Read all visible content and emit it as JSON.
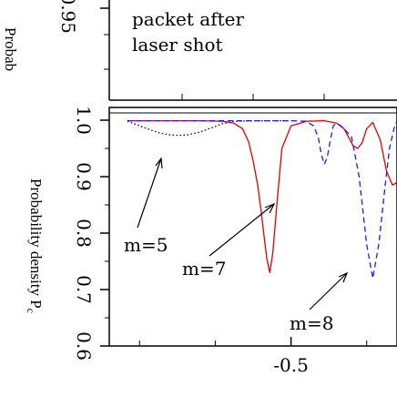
{
  "chart_data": [
    {
      "type": "line",
      "panel": "upper",
      "ylabel": "Probab",
      "y_ticks": [
        "0.95"
      ],
      "annotation_lines": [
        "packet after",
        "laser shot"
      ]
    },
    {
      "type": "line",
      "panel": "lower",
      "ylabel": "Probability density P",
      "ylabel_sub": "c",
      "ylim": [
        0.6,
        1.0
      ],
      "xlim": [
        -0.62,
        -0.43
      ],
      "y_ticks": [
        "1.0",
        "0.9",
        "0.8",
        "0.7",
        "0.6"
      ],
      "x_ticks": [
        "-0.5"
      ],
      "grid": false,
      "annotations": [
        "m=5",
        "m=7",
        "m=8"
      ],
      "series": [
        {
          "label": "m=5",
          "color": "#000000",
          "dash": "dotted",
          "x": [
            -0.608,
            -0.6,
            -0.592,
            -0.586,
            -0.58,
            -0.574,
            -0.568,
            -0.56,
            -0.552,
            -0.545,
            -0.538,
            -0.52,
            -0.5
          ],
          "y": [
            0.998,
            0.99,
            0.982,
            0.977,
            0.974,
            0.973,
            0.974,
            0.979,
            0.987,
            0.994,
            0.998,
            0.999,
            0.999
          ]
        },
        {
          "label": "m=7",
          "color": "#e00000",
          "dash": "solid",
          "x": [
            -0.608,
            -0.56,
            -0.545,
            -0.538,
            -0.532,
            -0.528,
            -0.525,
            -0.522,
            -0.52,
            -0.518,
            -0.516,
            -0.514,
            -0.512,
            -0.509,
            -0.506,
            -0.5,
            -0.49,
            -0.478,
            -0.47,
            -0.465,
            -0.462,
            -0.459,
            -0.456,
            -0.453,
            -0.45,
            -0.446,
            -0.441,
            -0.437,
            -0.433,
            -0.43
          ],
          "y": [
            0.999,
            0.999,
            0.998,
            0.995,
            0.985,
            0.962,
            0.928,
            0.885,
            0.845,
            0.8,
            0.755,
            0.73,
            0.765,
            0.86,
            0.95,
            0.99,
            0.998,
            0.999,
            0.995,
            0.985,
            0.97,
            0.955,
            0.95,
            0.96,
            0.985,
            0.996,
            0.965,
            0.91,
            0.885,
            0.89
          ]
        },
        {
          "label": "m=8",
          "color": "#1a1aff",
          "dash": "dashed",
          "x": [
            -0.608,
            -0.5,
            -0.49,
            -0.485,
            -0.482,
            -0.48,
            -0.478,
            -0.476,
            -0.474,
            -0.472,
            -0.47,
            -0.466,
            -0.46,
            -0.455,
            -0.45,
            -0.446,
            -0.442,
            -0.438,
            -0.435,
            -0.432,
            -0.43
          ],
          "y": [
            0.999,
            0.999,
            0.998,
            0.99,
            0.97,
            0.94,
            0.922,
            0.935,
            0.965,
            0.99,
            0.995,
            0.988,
            0.97,
            0.9,
            0.78,
            0.72,
            0.78,
            0.88,
            0.95,
            0.985,
            0.999
          ]
        }
      ]
    }
  ]
}
